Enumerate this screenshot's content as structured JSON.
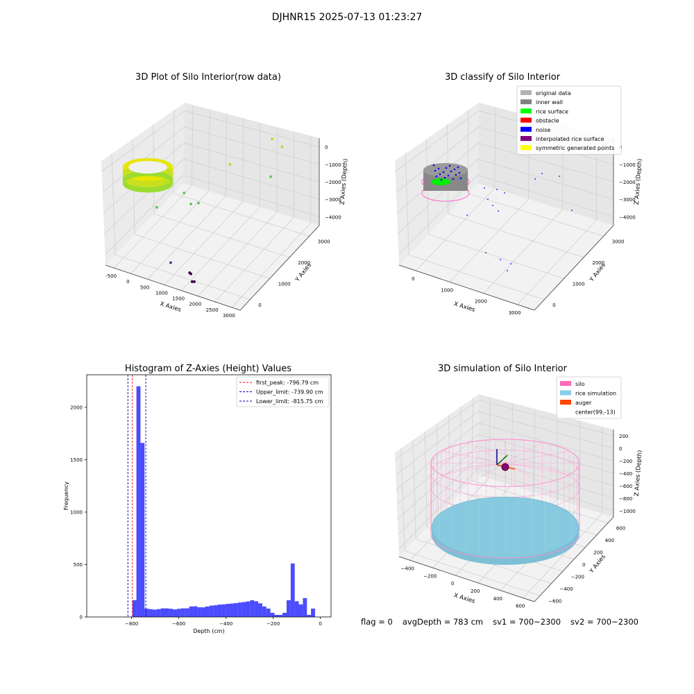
{
  "figure": {
    "suptitle": "DJHNR15 2025-07-13 01:23:27"
  },
  "status": {
    "flag": "flag = 0",
    "avg_depth": "avgDepth = 783 cm",
    "sv1": "sv1 = 700~2300",
    "sv2": "sv2 = 700~2300"
  },
  "chart_data": [
    {
      "type": "scatter",
      "projection": "3d",
      "title": "3D Plot of Silo Interior(row data)",
      "xlabel": "X Axies",
      "ylabel": "Y Axies",
      "zlabel": "Z Axies (Depth)",
      "x_ticks": [
        "-500",
        "0",
        "500",
        "1000",
        "1500",
        "2000",
        "2500",
        "3000"
      ],
      "y_ticks": [
        "0",
        "1000",
        "2000",
        "3000"
      ],
      "z_ticks": [
        "0",
        "−1000",
        "−2000",
        "−3000",
        "−4000"
      ],
      "colormap": "viridis",
      "grid": true,
      "series": [
        {
          "description_points": [
            {
              "x": 2200,
              "y": 3200,
              "z": -700
            },
            {
              "x": 2500,
              "y": 3200,
              "z": -900
            },
            {
              "x": 2600,
              "y": 2500,
              "z": -1500
            },
            {
              "x": 1700,
              "y": 2000,
              "z": -900
            },
            {
              "x": 1200,
              "y": 1300,
              "z": -2200
            },
            {
              "x": 1100,
              "y": 1100,
              "z": -2100
            },
            {
              "x": 900,
              "y": 1100,
              "z": -1700
            },
            {
              "x": 600,
              "y": 700,
              "z": -1000
            },
            {
              "x": 400,
              "y": 600,
              "z": -2100
            },
            {
              "x": 1000,
              "y": 300,
              "z": -4000
            },
            {
              "x": 1600,
              "y": 300,
              "z": -4200
            },
            {
              "x": 1700,
              "y": 200,
              "z": -4400
            },
            {
              "x": 1700,
              "y": 300,
              "z": -4500
            },
            {
              "x": 1500,
              "y": 400,
              "z": -4300
            }
          ]
        }
      ]
    },
    {
      "type": "scatter",
      "projection": "3d",
      "title": "3D classify of Silo Interior",
      "xlabel": "X Axies",
      "ylabel": "Y Axies",
      "zlabel": "Z Axies (Depth)",
      "x_ticks": [
        "0",
        "1000",
        "2000",
        "3000"
      ],
      "y_ticks": [
        "0",
        "1000",
        "2000",
        "3000"
      ],
      "z_ticks": [
        "0",
        "−1000",
        "−2000",
        "−3000",
        "−4000"
      ],
      "legend_position": "top-right",
      "grid": true,
      "series": [
        {
          "name": "original data",
          "color": "#b3b3b3"
        },
        {
          "name": "inner wall",
          "color": "#808080"
        },
        {
          "name": "rice surface",
          "color": "#00ff00"
        },
        {
          "name": "obstacle",
          "color": "#ff0000"
        },
        {
          "name": "noise",
          "color": "#0000ff"
        },
        {
          "name": "interpolated rice surface",
          "color": "#800080"
        },
        {
          "name": "symmetric generated points",
          "color": "#ffff00"
        }
      ]
    },
    {
      "type": "bar",
      "title": "Histogram of Z-Axies (Height) Values",
      "xlabel": "Depth (cm)",
      "ylabel": "Frequency",
      "xlim": [
        -990,
        45
      ],
      "ylim": [
        0,
        2310
      ],
      "x_ticks": [
        -800,
        -600,
        -400,
        -200,
        0
      ],
      "y_ticks": [
        0,
        500,
        1000,
        1500,
        2000
      ],
      "bar_color": "#0000ff",
      "bar_alpha": 0.7,
      "legend_position": "top-right",
      "bins": {
        "edges_start": -900,
        "bin_width": 17.2,
        "counts": [
          0,
          0,
          0,
          0,
          1,
          3,
          160,
          2200,
          1660,
          80,
          75,
          70,
          75,
          82,
          82,
          78,
          72,
          78,
          82,
          82,
          100,
          102,
          92,
          92,
          100,
          108,
          112,
          118,
          120,
          125,
          128,
          132,
          138,
          142,
          148,
          160,
          150,
          130,
          100,
          80,
          40,
          20,
          20,
          40,
          160,
          510,
          150,
          120,
          180,
          20,
          80
        ]
      },
      "reference_lines": [
        {
          "label": "first_peak: -796.79 cm",
          "x": -796.79,
          "color": "#ff0000",
          "style": "dashed"
        },
        {
          "label": "Upper_limit: -739.90 cm",
          "x": -739.9,
          "color": "#0000aa",
          "style": "dashed"
        },
        {
          "label": "Lower_limit: -815.75 cm",
          "x": -815.75,
          "color": "#0000aa",
          "style": "dashed"
        }
      ]
    },
    {
      "type": "scatter",
      "projection": "3d",
      "title": "3D simulation of Silo Interior",
      "xlabel": "X Axies",
      "ylabel": "Y Axies",
      "zlabel": "Z Axies (Depth)",
      "x_ticks": [
        "−400",
        "−200",
        "0",
        "200",
        "400",
        "600"
      ],
      "y_ticks": [
        "−600",
        "−400",
        "−200",
        "0",
        "200",
        "400",
        "600"
      ],
      "z_ticks": [
        "200",
        "0",
        "−200",
        "−400",
        "−600",
        "−800",
        "−1000"
      ],
      "legend_position": "top-right",
      "grid": true,
      "series": [
        {
          "name": "silo",
          "color": "#ff69b4"
        },
        {
          "name": "rice simulation",
          "color": "#87ceeb"
        },
        {
          "name": "auger",
          "color": "#ff4500"
        },
        {
          "name": "center(99,-13)",
          "color": ""
        }
      ]
    }
  ]
}
